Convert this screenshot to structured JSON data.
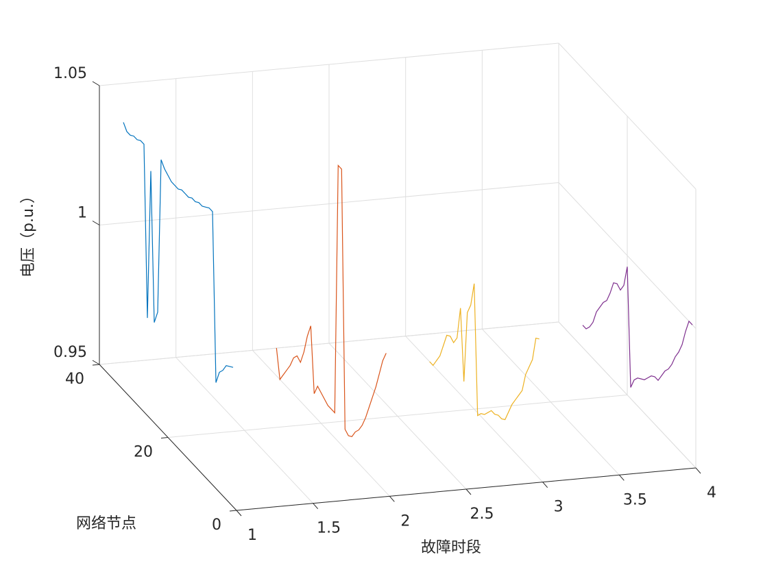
{
  "chart_data": {
    "type": "line3d",
    "xlabel": "故障时段",
    "ylabel": "网络节点",
    "zlabel": "电压（p.u.）",
    "xlim": [
      1,
      4
    ],
    "ylim": [
      0,
      40
    ],
    "zlim": [
      0.95,
      1.05
    ],
    "xticks": [
      1,
      1.5,
      2,
      2.5,
      3,
      3.5,
      4
    ],
    "yticks": [
      0,
      20,
      40
    ],
    "zticks": [
      0.95,
      1,
      1.05
    ],
    "grid": true,
    "y": [
      1,
      2,
      3,
      4,
      5,
      6,
      7,
      8,
      9,
      10,
      11,
      12,
      13,
      14,
      15,
      16,
      17,
      18,
      19,
      20,
      21,
      22,
      23,
      24,
      25,
      26,
      27,
      28,
      29,
      30,
      31,
      32,
      33
    ],
    "series": [
      {
        "x": 1,
        "color": "#0072BD",
        "values": [
          1.0,
          0.999,
          0.998,
          0.995,
          0.993,
          0.988,
          1.048,
          1.048,
          1.047,
          1.046,
          1.046,
          1.045,
          1.045,
          1.044,
          1.044,
          1.044,
          1.043,
          1.043,
          1.043,
          1.044,
          1.045,
          1.047,
          0.991,
          0.986,
          1.039,
          0.985,
          1.046,
          1.046,
          1.045,
          1.045,
          1.044,
          1.044,
          1.046
        ]
      },
      {
        "x": 2,
        "color": "#D95319",
        "values": [
          1.0,
          0.996,
          0.99,
          0.984,
          0.979,
          0.974,
          0.969,
          0.965,
          0.962,
          0.96,
          0.957,
          0.956,
          0.957,
          1.049,
          1.049,
          0.959,
          0.959,
          0.959,
          0.96,
          0.961,
          0.962,
          0.958,
          0.981,
          0.976,
          0.969,
          0.964,
          0.965,
          0.963,
          0.959,
          0.956,
          0.953,
          0.95,
          0.96
        ]
      },
      {
        "x": 3,
        "color": "#EDB120",
        "values": [
          1.0,
          0.999,
          0.99,
          0.986,
          0.982,
          0.975,
          0.972,
          0.969,
          0.966,
          0.962,
          0.958,
          0.957,
          0.957,
          0.956,
          0.956,
          0.954,
          0.952,
          0.951,
          0.949,
          0.995,
          0.986,
          0.982,
          0.956,
          0.981,
          0.969,
          0.966,
          0.967,
          0.966,
          0.961,
          0.956,
          0.953,
          0.95,
          0.95
        ]
      },
      {
        "x": 4,
        "color": "#7E2F8E",
        "values": [
          1.0,
          1.0,
          0.995,
          0.989,
          0.985,
          0.982,
          0.978,
          0.975,
          0.973,
          0.97,
          0.967,
          0.967,
          0.966,
          0.964,
          0.962,
          0.961,
          0.96,
          0.958,
          0.954,
          0.996,
          0.988,
          0.985,
          0.986,
          0.985,
          0.98,
          0.976,
          0.974,
          0.971,
          0.968,
          0.963,
          0.96,
          0.958,
          0.958
        ]
      }
    ]
  }
}
